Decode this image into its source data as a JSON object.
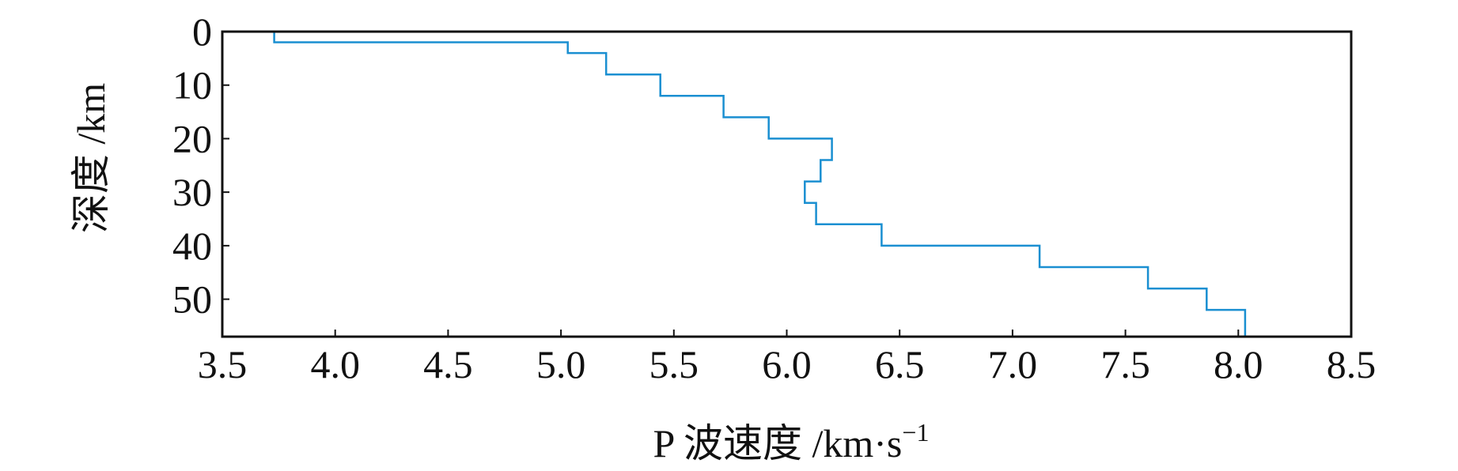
{
  "chart_data": {
    "type": "line",
    "title": "",
    "xlabel_main": "P 波速度 /km·s",
    "xlabel_sup": "−1",
    "ylabel": "深度 /km",
    "xlim": [
      3.5,
      8.5
    ],
    "ylim": [
      0,
      57
    ],
    "y_inverted": true,
    "x_ticks": [
      3.5,
      4.0,
      4.5,
      5.0,
      5.5,
      6.0,
      6.5,
      7.0,
      7.5,
      8.0,
      8.5
    ],
    "x_tick_labels": [
      "3.5",
      "4.0",
      "4.5",
      "5.0",
      "5.5",
      "6.0",
      "6.5",
      "7.0",
      "7.5",
      "8.0",
      "8.5"
    ],
    "y_ticks": [
      0,
      10,
      20,
      30,
      40,
      50
    ],
    "y_tick_labels": [
      "0",
      "10",
      "20",
      "30",
      "40",
      "50"
    ],
    "grid": false,
    "legend": "none",
    "line_color": "#1a8fd1",
    "series": [
      {
        "style": "step",
        "x": [
          3.73,
          5.03,
          5.2,
          5.44,
          5.72,
          5.92,
          6.2,
          6.15,
          6.08,
          6.13,
          6.42,
          7.12,
          7.6,
          7.86,
          8.03
        ],
        "depth_top": [
          0,
          2,
          4,
          8,
          12,
          16,
          20,
          24,
          28,
          32,
          36,
          40,
          44,
          48,
          52
        ],
        "depth_bottom": [
          2,
          4,
          8,
          12,
          16,
          20,
          24,
          28,
          32,
          36,
          40,
          44,
          48,
          52,
          57
        ]
      }
    ]
  }
}
